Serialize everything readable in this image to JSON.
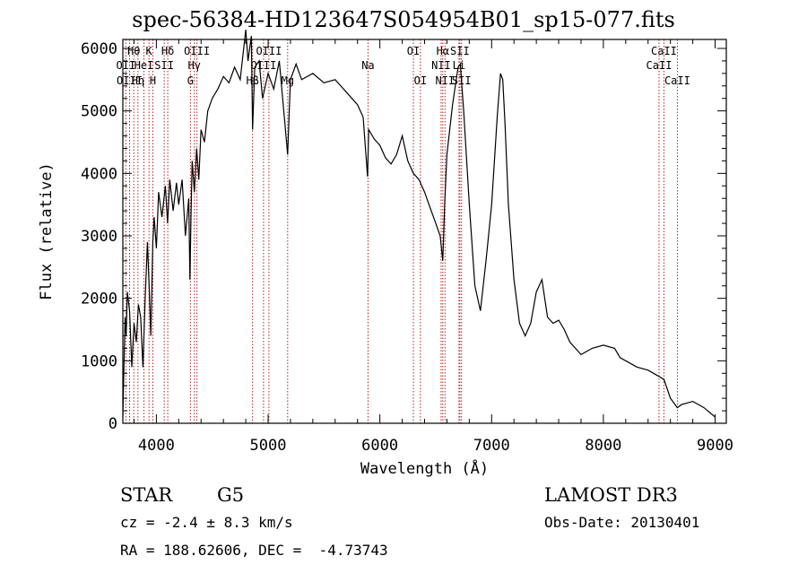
{
  "title": "spec-56384-HD123647S054954B01_sp15-077.fits",
  "info": {
    "object_type": "STAR",
    "object_class": "G5",
    "survey": "LAMOST DR3",
    "redshift": "cz = -2.4 ± 8.3 km/s",
    "obs_date": "Obs-Date: 20130401",
    "coords": "RA = 188.62606, DEC =  -4.73743"
  },
  "colors": {
    "spectrum": "#000000",
    "line_markers": "#b22222",
    "axes": "#000000"
  },
  "chart_data": {
    "type": "line",
    "title": "spec-56384-HD123647S054954B01_sp15-077.fits",
    "xlabel": "Wavelength (Å)",
    "ylabel": "Flux (relative)",
    "xlim": [
      3700,
      9100
    ],
    "ylim": [
      0,
      6000
    ],
    "x_ticks": [
      4000,
      5000,
      6000,
      7000,
      8000,
      9000
    ],
    "y_ticks": [
      0,
      1000,
      2000,
      3000,
      4000,
      5000,
      6000
    ],
    "grid": false,
    "series": [
      {
        "x": [
          3700,
          3710,
          3720,
          3730,
          3740,
          3760,
          3780,
          3800,
          3820,
          3840,
          3860,
          3880,
          3900,
          3920,
          3935,
          3950,
          3968,
          3980,
          4000,
          4020,
          4050,
          4080,
          4100,
          4120,
          4150,
          4180,
          4200,
          4230,
          4260,
          4290,
          4300,
          4310,
          4320,
          4340,
          4360,
          4380,
          4400,
          4430,
          4460,
          4500,
          4550,
          4600,
          4650,
          4700,
          4750,
          4800,
          4820,
          4850,
          4861,
          4880,
          4920,
          4950,
          5000,
          5050,
          5100,
          5150,
          5175,
          5200,
          5250,
          5300,
          5400,
          5500,
          5600,
          5700,
          5800,
          5850,
          5890,
          5900,
          5950,
          6000,
          6050,
          6100,
          6150,
          6200,
          6250,
          6300,
          6350,
          6400,
          6450,
          6500,
          6540,
          6563,
          6580,
          6600,
          6650,
          6700,
          6720,
          6750,
          6800,
          6850,
          6900,
          6950,
          7000,
          7050,
          7080,
          7100,
          7120,
          7150,
          7200,
          7250,
          7300,
          7350,
          7400,
          7450,
          7500,
          7550,
          7600,
          7650,
          7700,
          7800,
          7900,
          8000,
          8100,
          8150,
          8200,
          8300,
          8400,
          8498,
          8542,
          8600,
          8662,
          8700,
          8800,
          8900,
          9000
        ],
        "y": [
          100,
          900,
          1700,
          1400,
          2100,
          1800,
          900,
          1600,
          1300,
          1900,
          1700,
          900,
          2000,
          2900,
          2200,
          1400,
          2900,
          3300,
          2800,
          3700,
          3300,
          3800,
          3200,
          3900,
          3400,
          3850,
          3500,
          3900,
          3000,
          3600,
          2300,
          3300,
          4200,
          3700,
          4400,
          3900,
          4700,
          4500,
          5000,
          5200,
          5350,
          5550,
          5450,
          5700,
          5500,
          6300,
          5800,
          6200,
          4700,
          5700,
          5800,
          5200,
          5600,
          5350,
          5800,
          4800,
          4300,
          5500,
          5750,
          5500,
          5600,
          5450,
          5500,
          5300,
          5100,
          4900,
          3950,
          4700,
          4550,
          4450,
          4250,
          4150,
          4300,
          4600,
          4200,
          4000,
          3900,
          3700,
          3450,
          3200,
          3000,
          2600,
          3500,
          4300,
          5100,
          5700,
          5750,
          5000,
          3500,
          2200,
          1800,
          2600,
          3500,
          4900,
          5600,
          5500,
          4800,
          3500,
          2300,
          1600,
          1400,
          1600,
          2100,
          2300,
          1700,
          1600,
          1650,
          1500,
          1300,
          1100,
          1200,
          1250,
          1200,
          1050,
          1000,
          900,
          850,
          750,
          700,
          400,
          250,
          300,
          350,
          250,
          100
        ]
      }
    ],
    "line_markers": [
      {
        "label": "Hθ",
        "x": 3798,
        "row": 1
      },
      {
        "label": "OII",
        "x": 3727,
        "row": 2
      },
      {
        "label": "OIII",
        "x": 3760,
        "row": 3
      },
      {
        "label": "K",
        "x": 3934,
        "row": 1
      },
      {
        "label": "HeI",
        "x": 3889,
        "row": 2
      },
      {
        "label": "Hη",
        "x": 3835,
        "row": 3
      },
      {
        "label": "SII",
        "x": 4070,
        "row": 2
      },
      {
        "label": "H",
        "x": 3969,
        "row": 3
      },
      {
        "label": "Hδ",
        "x": 4102,
        "row": 1
      },
      {
        "label": "OIII",
        "x": 4363,
        "row": 1
      },
      {
        "label": "Hγ",
        "x": 4340,
        "row": 2
      },
      {
        "label": "G",
        "x": 4305,
        "row": 3
      },
      {
        "label": "OIII",
        "x": 5007,
        "row": 1
      },
      {
        "label": "OIII",
        "x": 4959,
        "row": 2
      },
      {
        "label": "Hβ",
        "x": 4861,
        "row": 3
      },
      {
        "label": "Mg",
        "x": 5175,
        "row": 3
      },
      {
        "label": "Na",
        "x": 5894,
        "row": 2
      },
      {
        "label": "OI",
        "x": 6300,
        "row": 1
      },
      {
        "label": "OI",
        "x": 6363,
        "row": 3
      },
      {
        "label": "Hα",
        "x": 6563,
        "row": 1
      },
      {
        "label": "NII",
        "x": 6548,
        "row": 2
      },
      {
        "label": "NII",
        "x": 6583,
        "row": 3
      },
      {
        "label": "SII",
        "x": 6716,
        "row": 1
      },
      {
        "label": "Li",
        "x": 6708,
        "row": 2
      },
      {
        "label": "SII",
        "x": 6731,
        "row": 3
      },
      {
        "label": "CaII",
        "x": 8542,
        "row": 1
      },
      {
        "label": "CaII",
        "x": 8498,
        "row": 2
      },
      {
        "label": "CaII",
        "x": 8662,
        "row": 3
      }
    ]
  }
}
